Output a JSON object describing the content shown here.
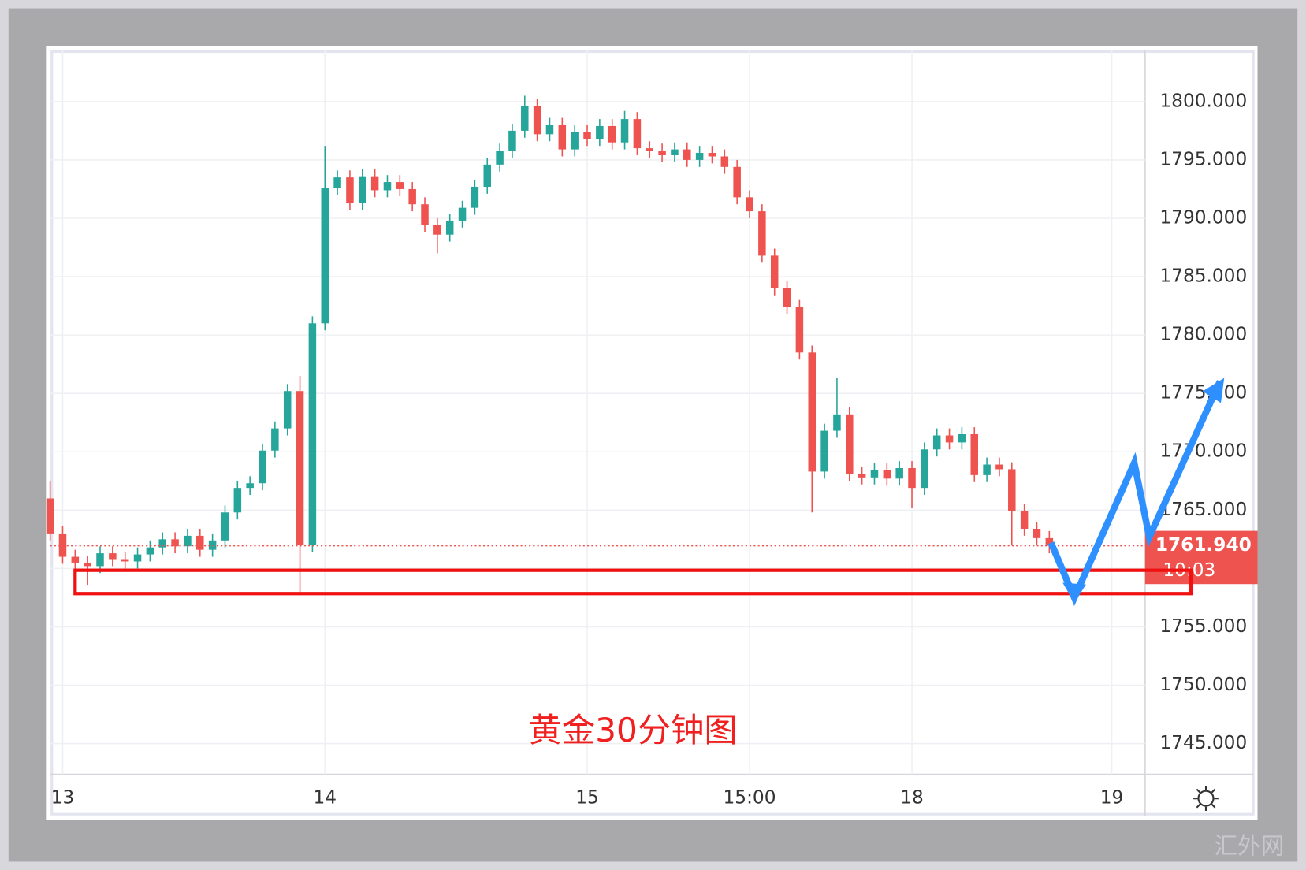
{
  "chart_data": {
    "type": "candlestick",
    "annotation": "黄金30分钟图",
    "watermark": "汇外网",
    "up_color": "#26a69a",
    "down_color": "#ef5350",
    "grid": true,
    "x": [
      0,
      1,
      2,
      3,
      4,
      5,
      6,
      7,
      8,
      9,
      10,
      11,
      12,
      13,
      14,
      15,
      16,
      17,
      18,
      19,
      20,
      21,
      22,
      23,
      24,
      25,
      26,
      27,
      28,
      29,
      30,
      31,
      32,
      33,
      34,
      35,
      36,
      37,
      38,
      39,
      40,
      41,
      42,
      43,
      44,
      45,
      46,
      47,
      48,
      49,
      50,
      51,
      52,
      53,
      54,
      55,
      56,
      57,
      58,
      59,
      60,
      61,
      62,
      63,
      64,
      65,
      66,
      67,
      68,
      69,
      70,
      71,
      72,
      73,
      74,
      75,
      76,
      77,
      78,
      79,
      80
    ],
    "open": [
      1766.0,
      1763.0,
      1761.0,
      1760.5,
      1760.2,
      1761.3,
      1760.8,
      1760.6,
      1761.2,
      1761.8,
      1762.5,
      1761.9,
      1762.8,
      1761.6,
      1762.4,
      1764.8,
      1766.9,
      1767.3,
      1770.1,
      1772.0,
      1775.2,
      1762.0,
      1781.0,
      1792.6,
      1793.5,
      1791.3,
      1793.6,
      1792.4,
      1793.1,
      1792.5,
      1791.2,
      1789.4,
      1788.6,
      1789.8,
      1790.9,
      1792.7,
      1794.6,
      1795.8,
      1797.5,
      1799.6,
      1797.2,
      1798.0,
      1795.9,
      1797.4,
      1796.8,
      1797.9,
      1796.5,
      1798.5,
      1796.0,
      1795.8,
      1795.4,
      1795.9,
      1795.0,
      1795.6,
      1795.3,
      1794.4,
      1791.8,
      1790.6,
      1786.8,
      1784.0,
      1782.4,
      1778.5,
      1768.3,
      1771.8,
      1773.2,
      1768.1,
      1767.8,
      1768.4,
      1767.7,
      1768.6,
      1766.9,
      1770.2,
      1771.4,
      1770.8,
      1771.5,
      1768.0,
      1768.9,
      1768.5,
      1764.9,
      1763.4,
      1762.6
    ],
    "high": [
      1767.5,
      1763.6,
      1761.6,
      1761.1,
      1761.9,
      1761.9,
      1761.4,
      1761.8,
      1762.4,
      1763.1,
      1763.1,
      1763.4,
      1763.4,
      1763.0,
      1765.4,
      1767.5,
      1767.9,
      1770.7,
      1772.6,
      1775.8,
      1776.5,
      1781.6,
      1796.2,
      1794.1,
      1794.1,
      1794.2,
      1794.2,
      1793.7,
      1793.7,
      1793.1,
      1791.8,
      1790.0,
      1790.4,
      1791.5,
      1793.3,
      1795.2,
      1796.4,
      1798.1,
      1800.5,
      1800.2,
      1798.6,
      1798.6,
      1798.0,
      1798.0,
      1798.5,
      1798.5,
      1799.2,
      1799.1,
      1796.6,
      1796.4,
      1796.5,
      1796.5,
      1796.2,
      1796.2,
      1795.9,
      1795.0,
      1792.4,
      1791.2,
      1787.4,
      1784.6,
      1783.0,
      1779.1,
      1772.4,
      1776.3,
      1773.8,
      1768.7,
      1769.0,
      1769.0,
      1769.2,
      1769.2,
      1770.8,
      1772.0,
      1772.0,
      1772.1,
      1772.1,
      1769.5,
      1769.5,
      1769.1,
      1765.5,
      1764.0,
      1763.2
    ],
    "low": [
      1762.4,
      1760.4,
      1759.9,
      1758.6,
      1759.6,
      1760.2,
      1760.0,
      1760.0,
      1760.6,
      1761.2,
      1761.3,
      1761.3,
      1761.0,
      1761.0,
      1761.8,
      1764.2,
      1766.3,
      1766.7,
      1769.5,
      1771.4,
      1757.8,
      1761.4,
      1780.4,
      1792.0,
      1790.7,
      1790.7,
      1791.8,
      1791.8,
      1791.9,
      1790.6,
      1788.8,
      1787.0,
      1788.0,
      1789.2,
      1790.3,
      1792.1,
      1794.0,
      1795.2,
      1796.9,
      1796.6,
      1796.6,
      1795.3,
      1795.3,
      1796.2,
      1796.2,
      1795.9,
      1795.9,
      1795.4,
      1795.2,
      1794.8,
      1794.8,
      1794.4,
      1794.4,
      1794.7,
      1793.8,
      1791.2,
      1790.0,
      1786.2,
      1783.4,
      1781.8,
      1777.9,
      1764.8,
      1767.7,
      1771.2,
      1767.5,
      1767.2,
      1767.2,
      1767.1,
      1767.1,
      1765.2,
      1766.3,
      1769.6,
      1770.2,
      1770.2,
      1767.4,
      1767.4,
      1767.9,
      1762.0,
      1762.8,
      1762.0,
      1761.3
    ],
    "close": [
      1763.0,
      1761.0,
      1760.5,
      1760.2,
      1761.3,
      1760.8,
      1760.6,
      1761.2,
      1761.8,
      1762.5,
      1761.9,
      1762.8,
      1761.6,
      1762.4,
      1764.8,
      1766.9,
      1767.3,
      1770.1,
      1772.0,
      1775.2,
      1762.0,
      1781.0,
      1792.6,
      1793.5,
      1791.3,
      1793.6,
      1792.4,
      1793.1,
      1792.5,
      1791.2,
      1789.4,
      1788.6,
      1789.8,
      1790.9,
      1792.7,
      1794.6,
      1795.8,
      1797.5,
      1799.6,
      1797.2,
      1798.0,
      1795.9,
      1797.4,
      1796.8,
      1797.9,
      1796.5,
      1798.5,
      1796.0,
      1795.8,
      1795.4,
      1795.9,
      1795.0,
      1795.6,
      1795.3,
      1794.4,
      1791.8,
      1790.6,
      1786.8,
      1784.0,
      1782.4,
      1778.5,
      1768.3,
      1771.8,
      1773.2,
      1768.1,
      1767.8,
      1768.4,
      1767.7,
      1768.6,
      1766.9,
      1770.2,
      1771.4,
      1770.8,
      1771.5,
      1768.0,
      1768.9,
      1768.5,
      1764.9,
      1763.4,
      1762.6,
      1761.94
    ],
    "last": {
      "value": 1761.94,
      "label": "1761.940"
    },
    "countdown": "10:03",
    "xlim": [
      0,
      87.67
    ],
    "xticks": [
      {
        "value": 1,
        "label": "13"
      },
      {
        "value": 22,
        "label": "14"
      },
      {
        "value": 43,
        "label": "15"
      },
      {
        "value": 56,
        "label": "15:00"
      },
      {
        "value": 69,
        "label": "18"
      },
      {
        "value": 85,
        "label": "19"
      }
    ],
    "ylim": [
      1742.37,
      1804.42
    ],
    "yticks": [
      {
        "value": 1745,
        "label": "1745.000"
      },
      {
        "value": 1750,
        "label": "1750.000"
      },
      {
        "value": 1755,
        "label": "1755.000"
      },
      {
        "value": 1760,
        "label": "1760.000"
      },
      {
        "value": 1765,
        "label": "1765.000"
      },
      {
        "value": 1770,
        "label": "1770.000"
      },
      {
        "value": 1775,
        "label": "1775.000"
      },
      {
        "value": 1780,
        "label": "1780.000"
      },
      {
        "value": 1785,
        "label": "1785.000"
      },
      {
        "value": 1790,
        "label": "1790.000"
      },
      {
        "value": 1795,
        "label": "1795.000"
      },
      {
        "value": 1800,
        "label": "1800.000"
      }
    ]
  }
}
